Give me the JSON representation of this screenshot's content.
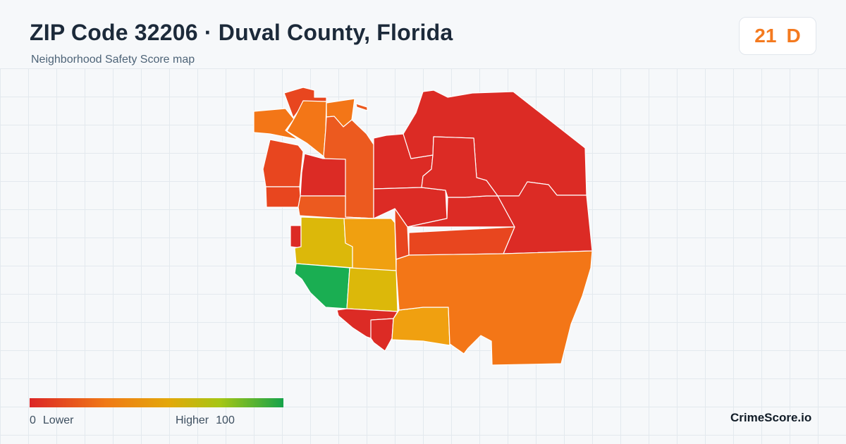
{
  "header": {
    "title": "ZIP Code 32206 · Duval County, Florida",
    "subtitle": "Neighborhood Safety Score map"
  },
  "score": {
    "value": "21",
    "grade": "D",
    "color": "#f47a1f"
  },
  "legend": {
    "min_value": "0",
    "min_label": "Lower",
    "max_label": "Higher",
    "max_value": "100",
    "colors": [
      "#dc2626",
      "#f07a16",
      "#e3a80a",
      "#a6c614",
      "#16a34a"
    ]
  },
  "brand": "CrimeScore.io",
  "map": {
    "colors": {
      "red": "#dc2b25",
      "red_orange": "#e8461f",
      "orange_red": "#ec5a1f",
      "orange": "#f37617",
      "amber": "#f0a010",
      "yellow": "#dcb80a",
      "green": "#1aae52"
    }
  }
}
